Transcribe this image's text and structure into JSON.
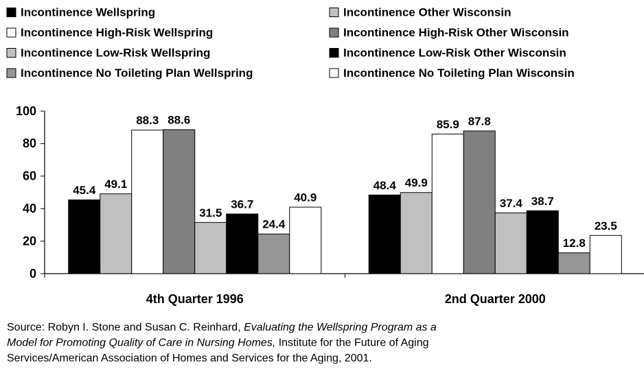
{
  "chart_data": {
    "type": "bar",
    "categories": [
      "4th Quarter 1996",
      "2nd Quarter 2000"
    ],
    "series": [
      {
        "name": "Incontinence Wellspring",
        "color": "#000000",
        "values": [
          45.4,
          48.4
        ]
      },
      {
        "name": "Incontinence Other Wisconsin",
        "color": "#c0c0c0",
        "values": [
          49.1,
          49.9
        ]
      },
      {
        "name": "Incontinence High-Risk Wellspring",
        "color": "#ffffff",
        "values": [
          88.3,
          85.9
        ]
      },
      {
        "name": "Incontinence High-Risk Other Wisconsin",
        "color": "#808080",
        "values": [
          88.6,
          87.8
        ]
      },
      {
        "name": "Incontinence Low-Risk Wellspring",
        "color": "#c0c0c0",
        "values": [
          31.5,
          37.4
        ]
      },
      {
        "name": "Incontinence Low-Risk Other Wisconsin",
        "color": "#000000",
        "values": [
          36.7,
          38.7
        ]
      },
      {
        "name": "Incontinence No Toileting Plan Wellspring",
        "color": "#969696",
        "values": [
          24.4,
          12.8
        ]
      },
      {
        "name": "Incontinence No Toileting Plan Wisconsin",
        "color": "#ffffff",
        "values": [
          40.9,
          23.5
        ]
      }
    ],
    "ylim": [
      0,
      100
    ],
    "yticks": [
      0,
      20,
      40,
      60,
      80,
      100
    ],
    "grid": false,
    "legend": "top",
    "source_lines": [
      [
        {
          "text": "Source: Robyn I. Stone and Susan C. Reinhard, ",
          "italic": false
        },
        {
          "text": "Evaluating the Wellspring Program as a",
          "italic": true
        }
      ],
      [
        {
          "text": "Model for Promoting Quality of Care in Nursing Homes,",
          "italic": true
        },
        {
          "text": " Institute for the Future of Aging",
          "italic": false
        }
      ],
      [
        {
          "text": "Services/American Association of Homes and Services for the Aging, 2001.",
          "italic": false
        }
      ]
    ]
  }
}
